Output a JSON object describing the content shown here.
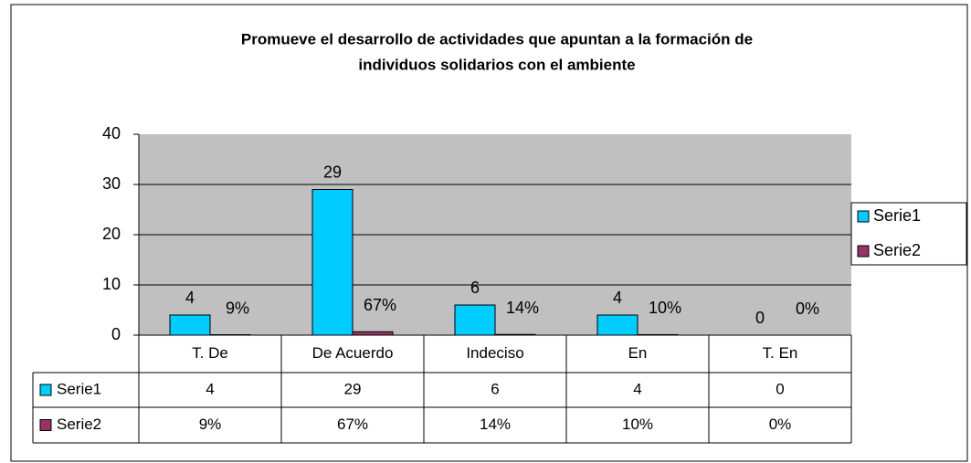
{
  "chart_data": {
    "type": "bar",
    "title": [
      "Promueve el desarrollo de actividades que apuntan a la formación de",
      "individuos solidarios con el ambiente"
    ],
    "categories": [
      "T. De",
      "De Acuerdo",
      "Indeciso",
      "En",
      "T. En"
    ],
    "series": [
      {
        "name": "Serie1",
        "color": "#00ccff",
        "values": [
          4,
          29,
          6,
          4,
          0
        ]
      },
      {
        "name": "Serie2",
        "color": "#993366",
        "values": [
          0.09,
          0.67,
          0.14,
          0.1,
          0
        ],
        "value_labels": [
          "9%",
          "67%",
          "14%",
          "10%",
          "0%"
        ]
      }
    ],
    "ylim": [
      0,
      40
    ],
    "yticks": [
      0,
      10,
      20,
      30,
      40
    ],
    "grid": true,
    "legend": "right",
    "data_table": true
  }
}
